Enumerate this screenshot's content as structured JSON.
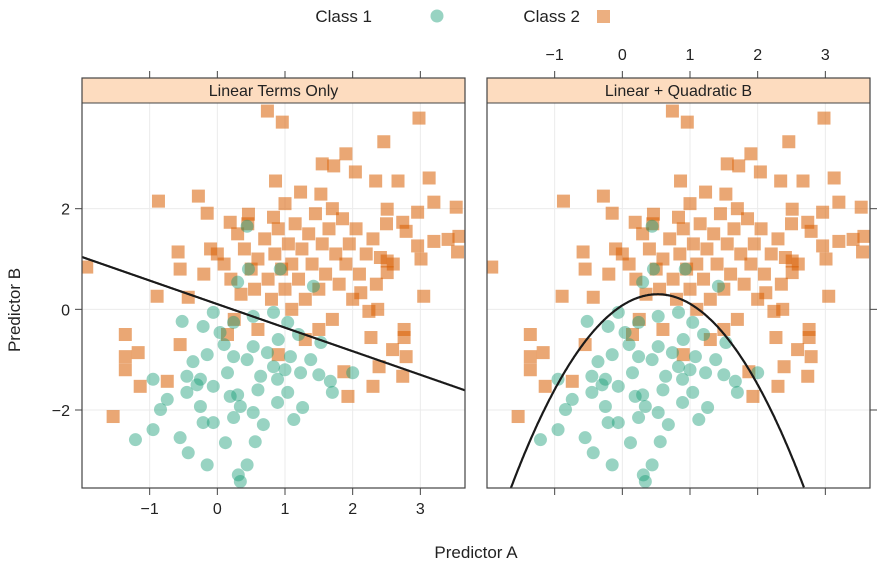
{
  "chart_data": {
    "type": "scatter",
    "xlabel": "Predictor A",
    "ylabel": "Predictor B",
    "xlim": [
      -2.0,
      3.66
    ],
    "ylim": [
      -3.55,
      4.1
    ],
    "x_ticks": [
      "-1",
      "0",
      "1",
      "2",
      "3"
    ],
    "x_tick_values": [
      -1,
      0,
      1,
      2,
      3
    ],
    "y_ticks": [
      "-2",
      "0",
      "2"
    ],
    "y_tick_values": [
      -2,
      0,
      2
    ],
    "grid": true,
    "legend_position": "top",
    "legend": [
      {
        "name": "Class 1",
        "marker": "circle",
        "color": "#1B9E77"
      },
      {
        "name": "Class 2",
        "marker": "square",
        "color": "#D95F02"
      }
    ],
    "strip_color": "#FDDCBF",
    "panels": [
      {
        "title": "Linear Terms Only",
        "boundary": {
          "kind": "linear",
          "intercept": 0.104,
          "slope": -0.468
        }
      },
      {
        "title": "Linear + Quadratic B",
        "boundary": {
          "kind": "quadratic",
          "vertex_a": 0.52,
          "vertex_b": 0.3,
          "curvature": -0.82
        }
      }
    ],
    "series": [
      {
        "name": "Class 1",
        "points": [
          [
            -0.52,
            -0.24
          ],
          [
            -0.95,
            -1.39
          ],
          [
            -1.21,
            -2.59
          ],
          [
            -0.95,
            -2.39
          ],
          [
            -0.84,
            -1.99
          ],
          [
            -0.74,
            -1.79
          ],
          [
            -0.55,
            -2.55
          ],
          [
            -0.43,
            -2.85
          ],
          [
            -0.15,
            -3.09
          ],
          [
            0.31,
            -3.29
          ],
          [
            0.44,
            -3.09
          ],
          [
            0.34,
            -3.52
          ],
          [
            0.56,
            -2.63
          ],
          [
            0.12,
            -2.65
          ],
          [
            -0.06,
            -2.25
          ],
          [
            0.24,
            -2.15
          ],
          [
            0.68,
            -2.29
          ],
          [
            1.13,
            -2.19
          ],
          [
            1.26,
            -1.95
          ],
          [
            1.04,
            -1.65
          ],
          [
            0.89,
            -1.85
          ],
          [
            1.7,
            -1.65
          ],
          [
            1.67,
            -1.43
          ],
          [
            2.0,
            -1.26
          ],
          [
            -0.15,
            -0.9
          ],
          [
            -0.36,
            -1.04
          ],
          [
            -0.45,
            -1.33
          ],
          [
            -0.25,
            -1.39
          ],
          [
            -0.06,
            -1.53
          ],
          [
            0.15,
            -1.26
          ],
          [
            0.24,
            -0.94
          ],
          [
            0.44,
            -1.0
          ],
          [
            0.53,
            -0.74
          ],
          [
            0.74,
            -0.86
          ],
          [
            0.83,
            -1.14
          ],
          [
            0.64,
            -1.33
          ],
          [
            0.89,
            -1.39
          ],
          [
            1.08,
            -0.94
          ],
          [
            1.23,
            -1.26
          ],
          [
            1.38,
            -1.0
          ],
          [
            1.53,
            -0.66
          ],
          [
            0.24,
            -0.26
          ],
          [
            0.04,
            -0.46
          ],
          [
            0.53,
            -0.14
          ],
          [
            0.83,
            -0.06
          ],
          [
            1.04,
            -0.26
          ],
          [
            0.3,
            0.54
          ],
          [
            0.46,
            0.8
          ],
          [
            0.44,
            1.65
          ],
          [
            1.42,
            0.46
          ],
          [
            0.93,
            0.8
          ],
          [
            -0.21,
            -0.34
          ],
          [
            -0.06,
            -0.06
          ],
          [
            -0.45,
            -1.65
          ],
          [
            0.19,
            -1.73
          ],
          [
            0.34,
            -1.93
          ],
          [
            0.53,
            -2.05
          ],
          [
            -0.25,
            -1.93
          ],
          [
            -0.21,
            -2.25
          ],
          [
            0.9,
            -0.6
          ],
          [
            1.2,
            -0.5
          ],
          [
            0.3,
            -1.7
          ],
          [
            0.6,
            -1.6
          ],
          [
            1.0,
            -1.2
          ],
          [
            0.1,
            -0.7
          ],
          [
            -0.3,
            -1.5
          ],
          [
            1.5,
            -1.3
          ]
        ]
      },
      {
        "name": "Class 2",
        "points": [
          [
            0.74,
            3.94
          ],
          [
            0.96,
            3.72
          ],
          [
            2.98,
            3.8
          ],
          [
            2.46,
            3.33
          ],
          [
            1.9,
            3.09
          ],
          [
            1.55,
            2.89
          ],
          [
            1.72,
            2.85
          ],
          [
            2.04,
            2.73
          ],
          [
            3.13,
            2.61
          ],
          [
            2.34,
            2.55
          ],
          [
            2.67,
            2.55
          ],
          [
            0.86,
            2.55
          ],
          [
            -0.87,
            2.15
          ],
          [
            -0.28,
            2.25
          ],
          [
            -0.15,
            1.91
          ],
          [
            3.2,
            2.13
          ],
          [
            3.53,
            2.03
          ],
          [
            2.96,
            1.93
          ],
          [
            2.51,
            1.99
          ],
          [
            0.46,
            1.89
          ],
          [
            0.83,
            1.83
          ],
          [
            0.19,
            1.73
          ],
          [
            1.23,
            2.33
          ],
          [
            1.53,
            2.29
          ],
          [
            2.74,
            1.73
          ],
          [
            2.79,
            1.55
          ],
          [
            3.2,
            1.35
          ],
          [
            3.41,
            1.39
          ],
          [
            3.57,
            1.45
          ],
          [
            3.55,
            1.14
          ],
          [
            2.96,
            1.26
          ],
          [
            3.01,
            1.0
          ],
          [
            2.51,
            0.96
          ],
          [
            3.05,
            0.26
          ],
          [
            -1.93,
            0.84
          ],
          [
            -0.58,
            1.14
          ],
          [
            -0.55,
            0.8
          ],
          [
            -0.89,
            0.26
          ],
          [
            -0.43,
            0.24
          ],
          [
            -1.36,
            -0.5
          ],
          [
            -1.36,
            -0.94
          ],
          [
            -1.17,
            -0.86
          ],
          [
            -1.36,
            -1.2
          ],
          [
            -1.14,
            -1.53
          ],
          [
            -0.74,
            -1.43
          ],
          [
            -1.54,
            -2.13
          ],
          [
            -0.55,
            -0.7
          ],
          [
            2.76,
            -0.4
          ],
          [
            2.76,
            -0.56
          ],
          [
            2.79,
            -0.94
          ],
          [
            2.59,
            -0.8
          ],
          [
            2.27,
            -0.56
          ],
          [
            2.39,
            -1.14
          ],
          [
            2.74,
            -1.33
          ],
          [
            1.93,
            -1.73
          ],
          [
            2.3,
            -1.53
          ],
          [
            1.87,
            -1.24
          ],
          [
            2.24,
            -0.04
          ],
          [
            2.37,
            0.0
          ],
          [
            2.51,
            0.73
          ],
          [
            2.41,
            1.03
          ],
          [
            2.12,
            0.33
          ],
          [
            0.0,
            1.1
          ],
          [
            0.1,
            0.9
          ],
          [
            0.2,
            0.6
          ],
          [
            0.3,
            1.5
          ],
          [
            0.4,
            1.2
          ],
          [
            0.5,
            0.8
          ],
          [
            0.55,
            0.4
          ],
          [
            0.6,
            1.0
          ],
          [
            0.7,
            1.4
          ],
          [
            0.75,
            0.6
          ],
          [
            0.8,
            0.2
          ],
          [
            0.85,
            1.1
          ],
          [
            0.9,
            1.6
          ],
          [
            0.95,
            0.8
          ],
          [
            1.0,
            0.4
          ],
          [
            1.05,
            1.3
          ],
          [
            1.1,
            0.0
          ],
          [
            1.1,
            0.9
          ],
          [
            1.15,
            1.7
          ],
          [
            1.2,
            0.6
          ],
          [
            1.25,
            1.2
          ],
          [
            1.3,
            0.2
          ],
          [
            1.35,
            1.5
          ],
          [
            1.4,
            0.9
          ],
          [
            1.45,
            1.9
          ],
          [
            1.5,
            0.4
          ],
          [
            1.55,
            1.3
          ],
          [
            1.6,
            0.7
          ],
          [
            1.65,
            1.6
          ],
          [
            1.7,
            -0.2
          ],
          [
            1.75,
            1.1
          ],
          [
            1.8,
            0.5
          ],
          [
            1.85,
            1.8
          ],
          [
            1.9,
            0.9
          ],
          [
            1.95,
            1.3
          ],
          [
            2.0,
            0.2
          ],
          [
            2.05,
            1.6
          ],
          [
            2.1,
            0.7
          ],
          [
            2.2,
            1.1
          ],
          [
            2.3,
            1.4
          ],
          [
            2.35,
            0.5
          ],
          [
            0.35,
            0.3
          ],
          [
            0.6,
            -0.4
          ],
          [
            0.25,
            -0.2
          ],
          [
            1.3,
            -0.6
          ],
          [
            0.9,
            -0.9
          ],
          [
            1.5,
            -0.4
          ],
          [
            -0.2,
            0.7
          ],
          [
            -0.1,
            1.2
          ],
          [
            0.45,
            1.7
          ],
          [
            1.0,
            2.1
          ],
          [
            1.7,
            2.0
          ],
          [
            2.5,
            1.7
          ],
          [
            2.6,
            0.9
          ],
          [
            0.15,
            -0.5
          ]
        ]
      }
    ]
  }
}
